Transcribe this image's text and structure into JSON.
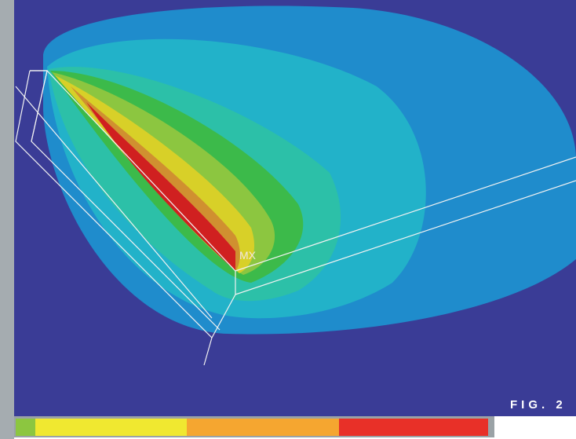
{
  "labels": {
    "marker": "MX",
    "figure": "FIG. 2"
  }
}
